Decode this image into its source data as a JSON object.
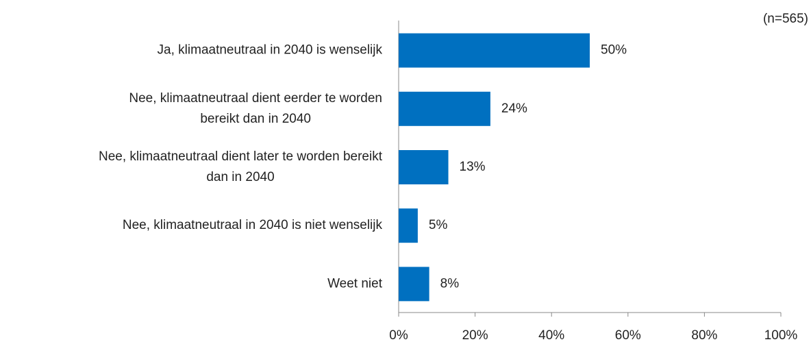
{
  "chart_data": {
    "type": "barh",
    "annotation": "(n=565)",
    "categories": [
      "Ja, klimaatneutraal in 2040 is wenselijk",
      "Nee, klimaatneutraal dient eerder te worden\nbereikt dan in 2040",
      "Nee, klimaatneutraal dient later te worden bereikt\ndan in 2040",
      "Nee, klimaatneutraal in 2040 is niet wenselijk",
      "Weet niet"
    ],
    "values": [
      50,
      24,
      13,
      5,
      8
    ],
    "value_labels": [
      "50%",
      "24%",
      "13%",
      "5%",
      "8%"
    ],
    "color": "#0070c0",
    "xlim": [
      0,
      100
    ],
    "xticks": [
      {
        "value": 0,
        "label": "0%"
      },
      {
        "value": 20,
        "label": "20%"
      },
      {
        "value": 40,
        "label": "40%"
      },
      {
        "value": 60,
        "label": "60%"
      },
      {
        "value": 80,
        "label": "80%"
      },
      {
        "value": 100,
        "label": "100%"
      }
    ],
    "grid": false
  }
}
